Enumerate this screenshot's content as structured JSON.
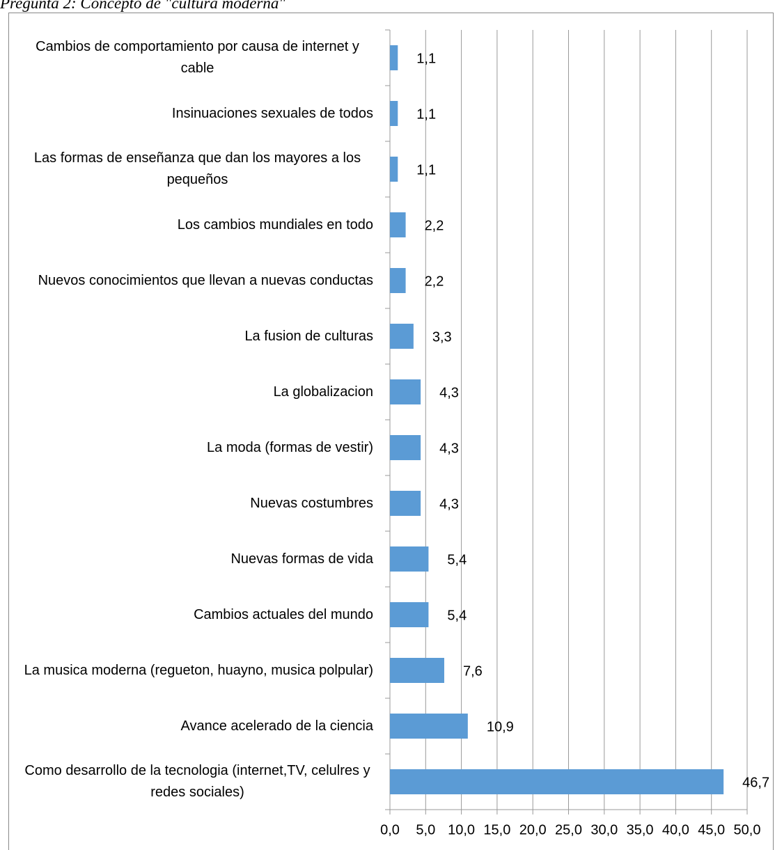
{
  "chart_data": {
    "type": "bar",
    "orientation": "horizontal",
    "title": "Pregunta 2: Concepto de \"cultura moderna\"",
    "categories": [
      "Cambios de comportamiento por causa de internet y cable",
      "Insinuaciones sexuales de todos",
      "Las formas de enseñanza que dan los mayores a los pequeños",
      "Los cambios mundiales en todo",
      "Nuevos conocimientos que llevan a nuevas conductas",
      "La fusion de culturas",
      "La globalizacion",
      "La moda (formas de vestir)",
      "Nuevas costumbres",
      "Nuevas formas de vida",
      "Cambios actuales del mundo",
      "La musica moderna (regueton, huayno, musica polpular)",
      "Avance acelerado de la ciencia",
      "Como desarrollo de la tecnologia (internet,TV, celulres y redes sociales)"
    ],
    "values": [
      1.1,
      1.1,
      1.1,
      2.2,
      2.2,
      3.3,
      4.3,
      4.3,
      4.3,
      5.4,
      5.4,
      7.6,
      10.9,
      46.7
    ],
    "value_labels": [
      "1,1",
      "1,1",
      "1,1",
      "2,2",
      "2,2",
      "3,3",
      "4,3",
      "4,3",
      "4,3",
      "5,4",
      "5,4",
      "7,6",
      "10,9",
      "46,7"
    ],
    "color": "#5b9bd5",
    "xlim": [
      0,
      50
    ],
    "xticks": [
      {
        "value": 0,
        "label": "0,0"
      },
      {
        "value": 5,
        "label": "5,0"
      },
      {
        "value": 10,
        "label": "10,0"
      },
      {
        "value": 15,
        "label": "15,0"
      },
      {
        "value": 20,
        "label": "20,0"
      },
      {
        "value": 25,
        "label": "25,0"
      },
      {
        "value": 30,
        "label": "30,0"
      },
      {
        "value": 35,
        "label": "35,0"
      },
      {
        "value": 40,
        "label": "40,0"
      },
      {
        "value": 45,
        "label": "45,0"
      },
      {
        "value": 50,
        "label": "50,0"
      }
    ],
    "grid": true
  }
}
